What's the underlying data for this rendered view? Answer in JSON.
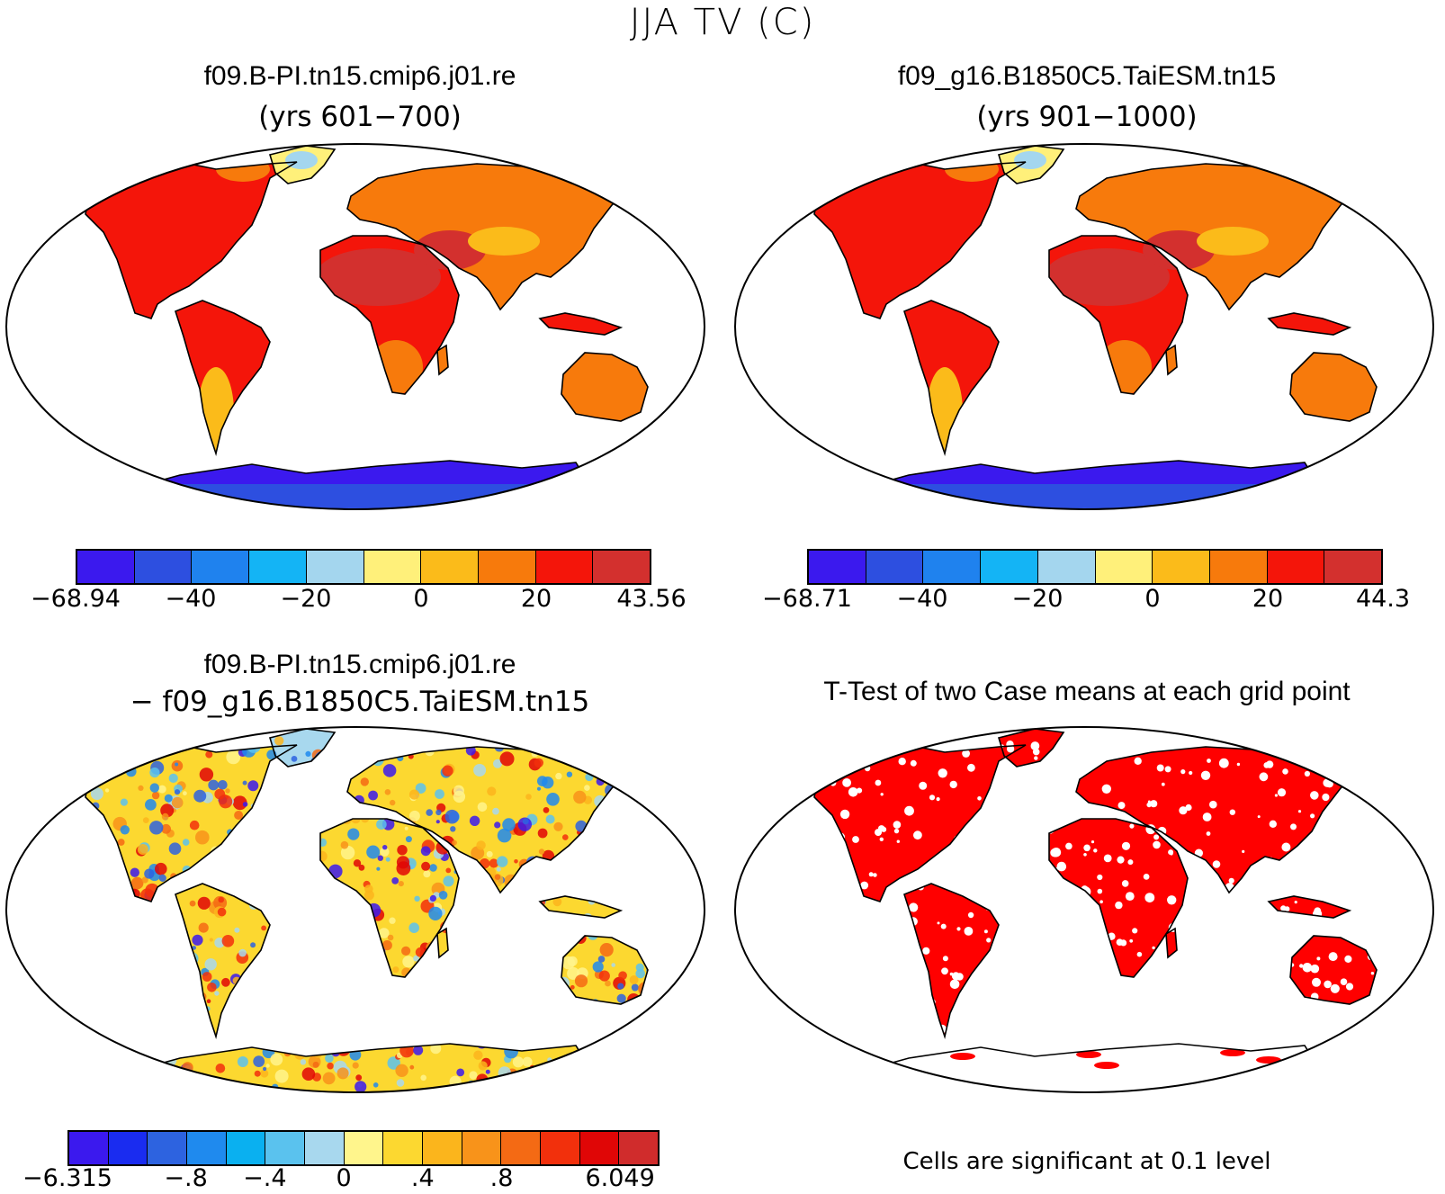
{
  "title": "JJA TV (C)",
  "panels": [
    {
      "id": "case1",
      "title": "f09.B-PI.tn15.cmip6.j01.re",
      "subtitle": "(yrs 601−700)",
      "colorbar": {
        "colors": [
          "#3b19ee",
          "#2d4fe0",
          "#1f82ee",
          "#14b4f5",
          "#a4d6ee",
          "#fff07a",
          "#fbbb1a",
          "#f77a0c",
          "#f4150a",
          "#d3302e"
        ],
        "ticks": [
          "−68.94",
          "−40",
          "−20",
          "0",
          "20",
          "43.56"
        ],
        "tick_boundaries": [
          0,
          2,
          4,
          6,
          8,
          10
        ]
      }
    },
    {
      "id": "case2",
      "title": "f09_g16.B1850C5.TaiESM.tn15",
      "subtitle": "(yrs 901−1000)",
      "colorbar": {
        "colors": [
          "#3b19ee",
          "#2d4fe0",
          "#1f82ee",
          "#14b4f5",
          "#a4d6ee",
          "#fff07a",
          "#fbbb1a",
          "#f77a0c",
          "#f4150a",
          "#d3302e"
        ],
        "ticks": [
          "−68.71",
          "−40",
          "−20",
          "0",
          "20",
          "44.3"
        ],
        "tick_boundaries": [
          0,
          2,
          4,
          6,
          8,
          10
        ]
      }
    },
    {
      "id": "diff",
      "title": "f09.B-PI.tn15.cmip6.j01.re",
      "subtitle": "− f09_g16.B1850C5.TaiESM.tn15",
      "colorbar": {
        "colors": [
          "#3b19ee",
          "#1a2cf0",
          "#2d63e0",
          "#1f8aee",
          "#0ab0f0",
          "#5ac2ee",
          "#a8d8ee",
          "#fff58c",
          "#fcd830",
          "#fbb51c",
          "#f8931a",
          "#f46a14",
          "#f2300c",
          "#e00606",
          "#d02c2c"
        ],
        "ticks": [
          "−6.315",
          "−.8",
          "−.4",
          "0",
          ".4",
          ".8",
          "6.049"
        ],
        "tick_boundaries": [
          0,
          3,
          5,
          7,
          9,
          11,
          14
        ]
      }
    },
    {
      "id": "ttest",
      "title": "T-Test of two Case means at each grid point",
      "note": "Cells are significant at 0.1 level"
    }
  ],
  "map_colors": {
    "warm_dark": "#d3302e",
    "warm_red": "#f4150a",
    "warm_orange": "#f77a0c",
    "warm_yellow": "#fbbb1a",
    "ice_blue": "#2d4fe0",
    "ice_deep": "#3b19ee",
    "sig_red": "#ff0000"
  }
}
